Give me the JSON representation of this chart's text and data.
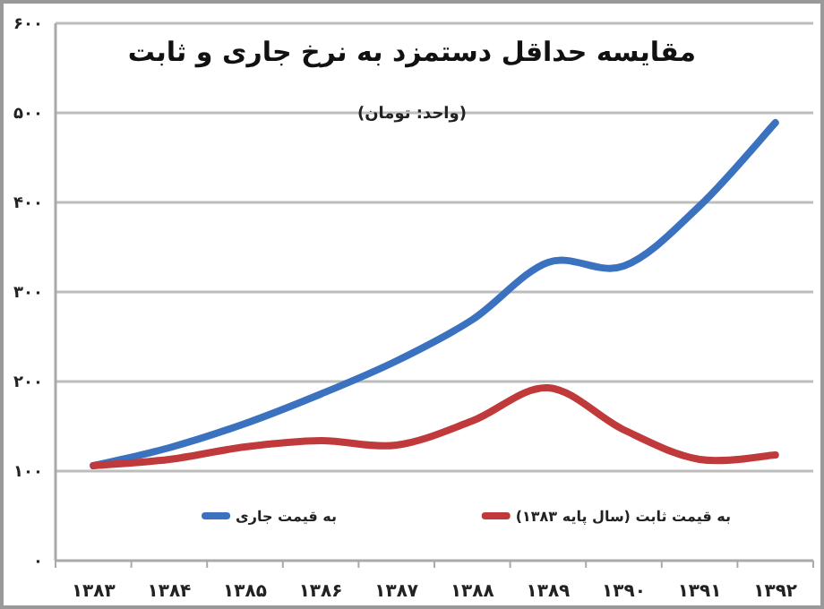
{
  "chart_data": {
    "type": "line",
    "title": "مقایسه حداقل دستمزد به نرخ جاری و ثابت",
    "subtitle": "(واحد: تومان)",
    "categories": [
      "۱۳۸۳",
      "۱۳۸۴",
      "۱۳۸۵",
      "۱۳۸۶",
      "۱۳۸۷",
      "۱۳۸۸",
      "۱۳۸۹",
      "۱۳۹۰",
      "۱۳۹۱",
      "۱۳۹۲"
    ],
    "series": [
      {
        "name": "به قیمت جاری",
        "color": "#3a72c0",
        "values": [
          106,
          126,
          153,
          186,
          223,
          269,
          333,
          329,
          396,
          489
        ]
      },
      {
        "name": "به قیمت ثابت (سال پایه ۱۳۸۳)",
        "color": "#c0393b",
        "values": [
          106,
          113,
          127,
          134,
          129,
          156,
          193,
          146,
          113,
          118
        ]
      }
    ],
    "ylim": [
      0,
      600
    ],
    "yticks": [
      {
        "value": 0,
        "label": "۰"
      },
      {
        "value": 100,
        "label": "۱۰۰"
      },
      {
        "value": 200,
        "label": "۲۰۰"
      },
      {
        "value": 300,
        "label": "۳۰۰"
      },
      {
        "value": 400,
        "label": "۴۰۰"
      },
      {
        "value": 500,
        "label": "۵۰۰"
      },
      {
        "value": 600,
        "label": "۶۰۰"
      }
    ],
    "grid": "y",
    "legend": "bottom",
    "marker": "none",
    "line_style": "solid"
  }
}
